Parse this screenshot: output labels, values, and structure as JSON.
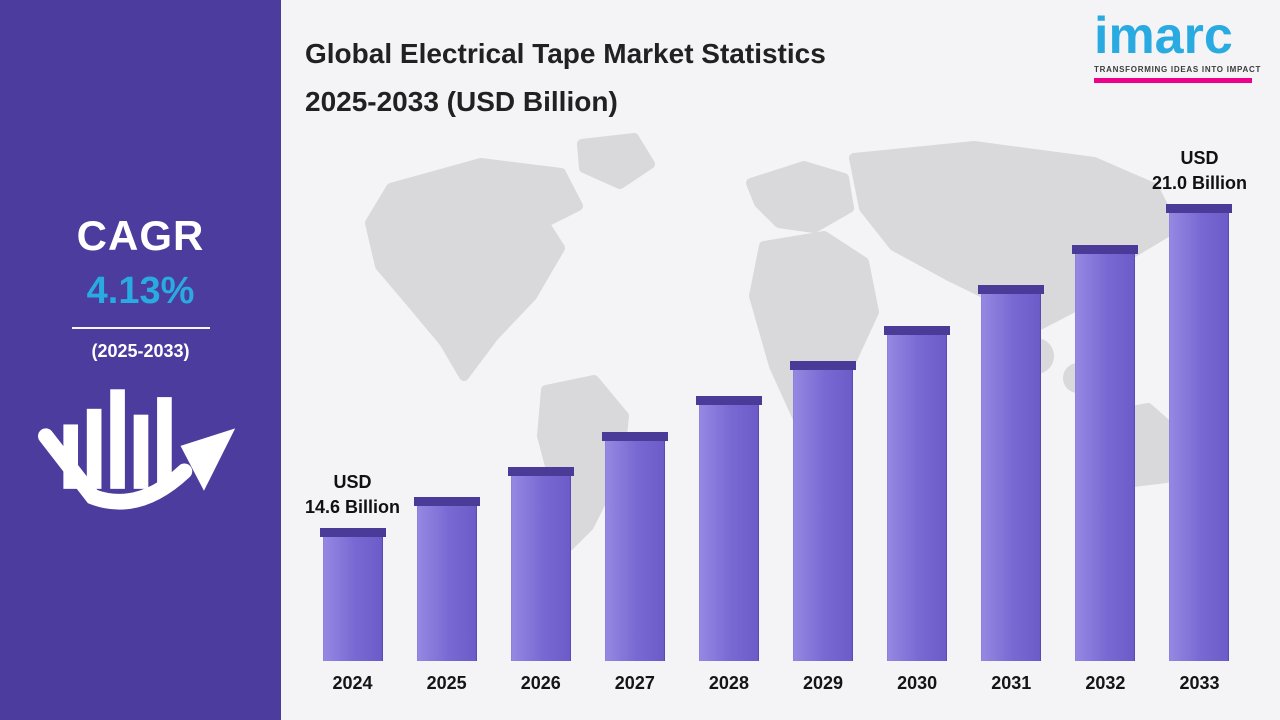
{
  "sidebar": {
    "cagr_label": "CAGR",
    "cagr_value": "4.13%",
    "cagr_period": "(2025-2033)",
    "background_color": "#4b3c9d",
    "accent_color": "#29abe2"
  },
  "header": {
    "title_line1": "Global Electrical Tape Market Statistics",
    "title_line2": "2025-2033 (USD Billion)"
  },
  "logo": {
    "name": "imarc",
    "tagline": "TRANSFORMING IDEAS INTO IMPACT",
    "text_color": "#29abe2",
    "accent_color": "#ec008c"
  },
  "icons": {
    "sidebar_icon": "growth-arrow-icon",
    "background": "world-map"
  },
  "chart_data": {
    "type": "bar",
    "title": "Global Electrical Tape Market Statistics 2025-2033 (USD Billion)",
    "categories": [
      "2024",
      "2025",
      "2026",
      "2027",
      "2028",
      "2029",
      "2030",
      "2031",
      "2032",
      "2033"
    ],
    "values": [
      14.6,
      15.2,
      15.8,
      16.5,
      17.2,
      17.9,
      18.6,
      19.4,
      20.2,
      21.0
    ],
    "unit": "USD Billion",
    "cagr_percent": 4.13,
    "xlabel": "",
    "ylabel": "",
    "ylim": [
      12,
      21.5
    ],
    "grid": false,
    "legend": false,
    "bar_color": "#7768d2",
    "bar_cap_color": "#4a3b98",
    "annotations": {
      "first": {
        "line1": "USD",
        "line2": "14.6 Billion"
      },
      "last": {
        "line1": "USD",
        "line2": "21.0 Billion"
      }
    }
  }
}
